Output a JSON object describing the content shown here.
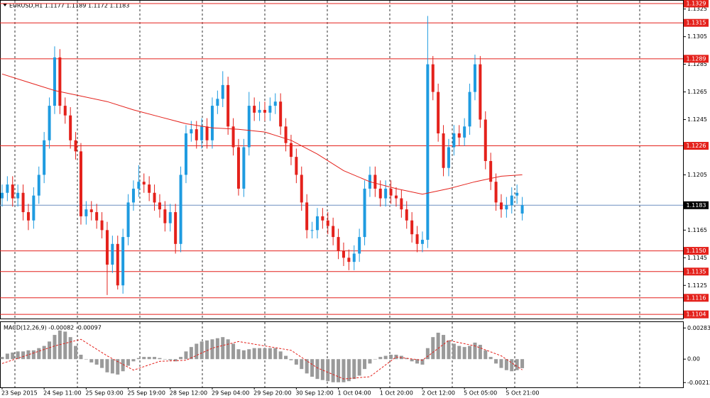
{
  "chart_data": [
    {
      "type": "candlestick",
      "title": "EURUSD,H1  1.1177 1.1189 1.1172 1.1183",
      "xlim": [
        -0.4,
        129.6
      ],
      "ylim": [
        1.1101,
        1.133
      ],
      "yticks": [
        1.1325,
        1.1305,
        1.1285,
        1.1265,
        1.1245,
        1.1205,
        1.1165,
        1.1145,
        1.1125
      ],
      "up_color": "#1e9be0",
      "down_color": "#e4211b",
      "open": [
        1.1188,
        1.1192,
        1.1198,
        1.1188,
        1.1192,
        1.1178,
        1.1172,
        1.119,
        1.1205,
        1.123,
        1.1255,
        1.129,
        1.1255,
        1.1248,
        1.123,
        1.1222,
        1.1175,
        1.118,
        1.1178,
        1.1172,
        1.1165,
        1.114,
        1.1155,
        1.1125,
        1.116,
        1.1185,
        1.1195,
        1.12,
        1.1198,
        1.1192,
        1.1185,
        1.118,
        1.117,
        1.1178,
        1.1155,
        1.1205,
        1.1235,
        1.1238,
        1.123,
        1.124,
        1.123,
        1.1255,
        1.126,
        1.127,
        1.124,
        1.1225,
        1.1195,
        1.1225,
        1.1255,
        1.125,
        1.1252,
        1.125,
        1.1255,
        1.1258,
        1.124,
        1.1228,
        1.1218,
        1.1205,
        1.1185,
        1.1165,
        1.1165,
        1.1175,
        1.1172,
        1.1168,
        1.116,
        1.115,
        1.1145,
        1.1142,
        1.1148,
        1.116,
        1.1195,
        1.1205,
        1.1195,
        1.1188,
        1.1195,
        1.119,
        1.1188,
        1.118,
        1.1172,
        1.1162,
        1.1155,
        1.1158,
        1.1285,
        1.1265,
        1.1235,
        1.121,
        1.1225,
        1.1235,
        1.1232,
        1.124,
        1.1265,
        1.1285,
        1.1245,
        1.1215,
        1.12,
        1.1185,
        1.118,
        1.1183,
        1.119,
        1.1177
      ],
      "high": [
        1.1198,
        1.1204,
        1.1204,
        1.1198,
        1.1198,
        1.1184,
        1.1196,
        1.1211,
        1.1236,
        1.1261,
        1.1298,
        1.1296,
        1.1261,
        1.1254,
        1.1236,
        1.1228,
        1.1186,
        1.1186,
        1.1184,
        1.1178,
        1.1171,
        1.1161,
        1.1161,
        1.1166,
        1.1191,
        1.1201,
        1.1212,
        1.1206,
        1.1204,
        1.1198,
        1.1191,
        1.1186,
        1.1184,
        1.1184,
        1.1211,
        1.1241,
        1.1244,
        1.1244,
        1.1246,
        1.1246,
        1.1261,
        1.1266,
        1.128,
        1.1276,
        1.1246,
        1.1231,
        1.1231,
        1.1265,
        1.1261,
        1.1258,
        1.1258,
        1.1261,
        1.1264,
        1.1264,
        1.1246,
        1.1234,
        1.1224,
        1.1211,
        1.1191,
        1.1171,
        1.1181,
        1.1181,
        1.1178,
        1.1174,
        1.1166,
        1.1156,
        1.1151,
        1.1154,
        1.1166,
        1.1201,
        1.1211,
        1.1211,
        1.1201,
        1.1201,
        1.1201,
        1.1196,
        1.1194,
        1.1186,
        1.1178,
        1.1168,
        1.1164,
        1.132,
        1.1291,
        1.1271,
        1.1241,
        1.1231,
        1.1241,
        1.1241,
        1.1246,
        1.1271,
        1.1292,
        1.1291,
        1.1251,
        1.1221,
        1.1206,
        1.1191,
        1.1189,
        1.1196,
        1.1198,
        1.1189
      ],
      "low": [
        1.1182,
        1.1186,
        1.1182,
        1.1182,
        1.1172,
        1.1165,
        1.1166,
        1.1184,
        1.1199,
        1.1224,
        1.1249,
        1.1249,
        1.1242,
        1.1224,
        1.1216,
        1.1169,
        1.1169,
        1.1172,
        1.1166,
        1.1159,
        1.1118,
        1.1134,
        1.1122,
        1.1119,
        1.1154,
        1.1179,
        1.1189,
        1.1192,
        1.1186,
        1.1179,
        1.1174,
        1.1164,
        1.1164,
        1.1148,
        1.1149,
        1.1199,
        1.1229,
        1.1224,
        1.1224,
        1.1224,
        1.1224,
        1.1249,
        1.1254,
        1.1234,
        1.1219,
        1.119,
        1.1189,
        1.1219,
        1.1244,
        1.1244,
        1.1244,
        1.1244,
        1.1249,
        1.1234,
        1.1222,
        1.1212,
        1.1199,
        1.1179,
        1.1159,
        1.1159,
        1.1159,
        1.1166,
        1.1162,
        1.1154,
        1.1144,
        1.1139,
        1.1136,
        1.1136,
        1.1142,
        1.1154,
        1.1189,
        1.1189,
        1.1182,
        1.1182,
        1.1184,
        1.1182,
        1.1174,
        1.1166,
        1.1156,
        1.1149,
        1.1149,
        1.1152,
        1.1259,
        1.1229,
        1.1204,
        1.1204,
        1.1219,
        1.1226,
        1.1226,
        1.1234,
        1.1259,
        1.1239,
        1.1209,
        1.1194,
        1.1179,
        1.1174,
        1.1174,
        1.1177,
        1.1184,
        1.1172
      ],
      "close": [
        1.1192,
        1.1198,
        1.1188,
        1.1192,
        1.1178,
        1.1172,
        1.119,
        1.1205,
        1.123,
        1.1255,
        1.129,
        1.1255,
        1.1248,
        1.123,
        1.1222,
        1.1175,
        1.118,
        1.1178,
        1.1172,
        1.1165,
        1.114,
        1.1155,
        1.1125,
        1.116,
        1.1185,
        1.1195,
        1.12,
        1.1198,
        1.1192,
        1.1185,
        1.118,
        1.117,
        1.1178,
        1.1155,
        1.1205,
        1.1235,
        1.1238,
        1.123,
        1.124,
        1.123,
        1.1255,
        1.126,
        1.127,
        1.124,
        1.1225,
        1.1195,
        1.1225,
        1.1255,
        1.125,
        1.1252,
        1.125,
        1.1255,
        1.1258,
        1.124,
        1.1228,
        1.1218,
        1.1205,
        1.1185,
        1.1165,
        1.1165,
        1.1175,
        1.1172,
        1.1168,
        1.116,
        1.115,
        1.1145,
        1.1142,
        1.1148,
        1.116,
        1.1195,
        1.1205,
        1.1195,
        1.1188,
        1.1195,
        1.119,
        1.1188,
        1.118,
        1.1172,
        1.1162,
        1.1155,
        1.1158,
        1.1285,
        1.1265,
        1.1235,
        1.121,
        1.1225,
        1.1235,
        1.1232,
        1.124,
        1.1265,
        1.1285,
        1.1245,
        1.1215,
        1.12,
        1.1185,
        1.118,
        1.1183,
        1.119,
        1.1192,
        1.1183
      ],
      "moving_average": {
        "color": "#e4211b",
        "x": [
          0,
          5,
          10,
          15,
          20,
          25,
          30,
          35,
          40,
          45,
          50,
          55,
          60,
          65,
          70,
          75,
          80,
          85,
          90,
          95,
          99
        ],
        "values": [
          1.1278,
          1.1272,
          1.1266,
          1.1262,
          1.1258,
          1.1252,
          1.1247,
          1.1242,
          1.1239,
          1.1238,
          1.1236,
          1.123,
          1.122,
          1.1208,
          1.12,
          1.1195,
          1.1191,
          1.1195,
          1.12,
          1.1204,
          1.1205
        ]
      },
      "levels": [
        1.1329,
        1.1315,
        1.1289,
        1.1226,
        {
          "value": 1.115,
          "label": "1.1150"
        },
        1.1135,
        1.1116,
        1.1104
      ],
      "level_color": "#e4211b",
      "price_line": {
        "value": 1.1183,
        "color": "#6f8fc0"
      }
    },
    {
      "type": "macd",
      "title": "MACD(12,26,9) -0.00082 -0.00097",
      "xlim": [
        -0.4,
        129.6
      ],
      "ylim": [
        -0.0025,
        0.0033
      ],
      "yticks": [
        0.00283,
        {
          "value": 0,
          "label": "0.00"
        },
        -0.00213
      ],
      "xticks": [
        {
          "value": 0,
          "label": "23 Sep 2015"
        },
        {
          "value": 8,
          "label": "24 Sep 11:00"
        },
        {
          "value": 16,
          "label": "25 Sep 03:00"
        },
        {
          "value": 24,
          "label": "25 Sep 19:00"
        },
        {
          "value": 32,
          "label": "28 Sep 12:00"
        },
        {
          "value": 40,
          "label": "29 Sep 04:00"
        },
        {
          "value": 48,
          "label": "29 Sep 20:00"
        },
        {
          "value": 56,
          "label": "30 Sep 12:00"
        },
        {
          "value": 64,
          "label": "1 Oct 04:00"
        },
        {
          "value": 72,
          "label": "1 Oct 20:00"
        },
        {
          "value": 80,
          "label": "2 Oct 12:00"
        },
        {
          "value": 88,
          "label": "5 Oct 05:00"
        },
        {
          "value": 96,
          "label": "5 Oct 21:00"
        }
      ],
      "histogram": {
        "color": "#9a9a9a",
        "values": [
          0.0002,
          0.0005,
          0.0006,
          0.0007,
          0.0007,
          0.0008,
          0.0008,
          0.001,
          0.0012,
          0.0016,
          0.0022,
          0.0026,
          0.0025,
          0.002,
          0.0012,
          0.0004,
          0.0,
          -0.0003,
          -0.0005,
          -0.0008,
          -0.0012,
          -0.0013,
          -0.0014,
          -0.0011,
          -0.0006,
          -0.0002,
          0.0001,
          0.0002,
          0.0002,
          0.0002,
          0.0001,
          0.0,
          -0.0001,
          -0.0002,
          0.0002,
          0.0007,
          0.0011,
          0.0014,
          0.0016,
          0.0017,
          0.0018,
          0.0019,
          0.002,
          0.0018,
          0.0014,
          0.0009,
          0.0008,
          0.0009,
          0.001,
          0.001,
          0.001,
          0.001,
          0.001,
          0.0007,
          0.0003,
          -0.0001,
          -0.0005,
          -0.0009,
          -0.0013,
          -0.0016,
          -0.0018,
          -0.0019,
          -0.002,
          -0.0021,
          -0.0021,
          -0.0021,
          -0.002,
          -0.0018,
          -0.0015,
          -0.0009,
          -0.0004,
          0.0,
          0.0002,
          0.0003,
          0.0004,
          0.0004,
          0.0003,
          0.0001,
          -0.0002,
          -0.0004,
          -0.0005,
          0.001,
          0.002,
          0.0024,
          0.0022,
          0.0017,
          0.0014,
          0.0012,
          0.0011,
          0.0012,
          0.0015,
          0.0013,
          0.0008,
          0.0002,
          -0.0004,
          -0.0008,
          -0.001,
          -0.0011,
          -0.001,
          -0.00082
        ]
      },
      "signal": {
        "color": "#e4211b",
        "x": [
          0,
          5,
          10,
          15,
          20,
          25,
          30,
          35,
          40,
          45,
          50,
          55,
          60,
          65,
          70,
          75,
          80,
          85,
          90,
          95,
          99
        ],
        "values": [
          -0.0004,
          0.0004,
          0.0012,
          0.0018,
          0.0003,
          -0.001,
          -0.0002,
          -0.0001,
          0.001,
          0.0016,
          0.0012,
          0.0008,
          -0.0008,
          -0.0018,
          -0.0016,
          0.0002,
          -0.0001,
          0.0017,
          0.0012,
          0.0003,
          -0.00097
        ]
      }
    }
  ]
}
